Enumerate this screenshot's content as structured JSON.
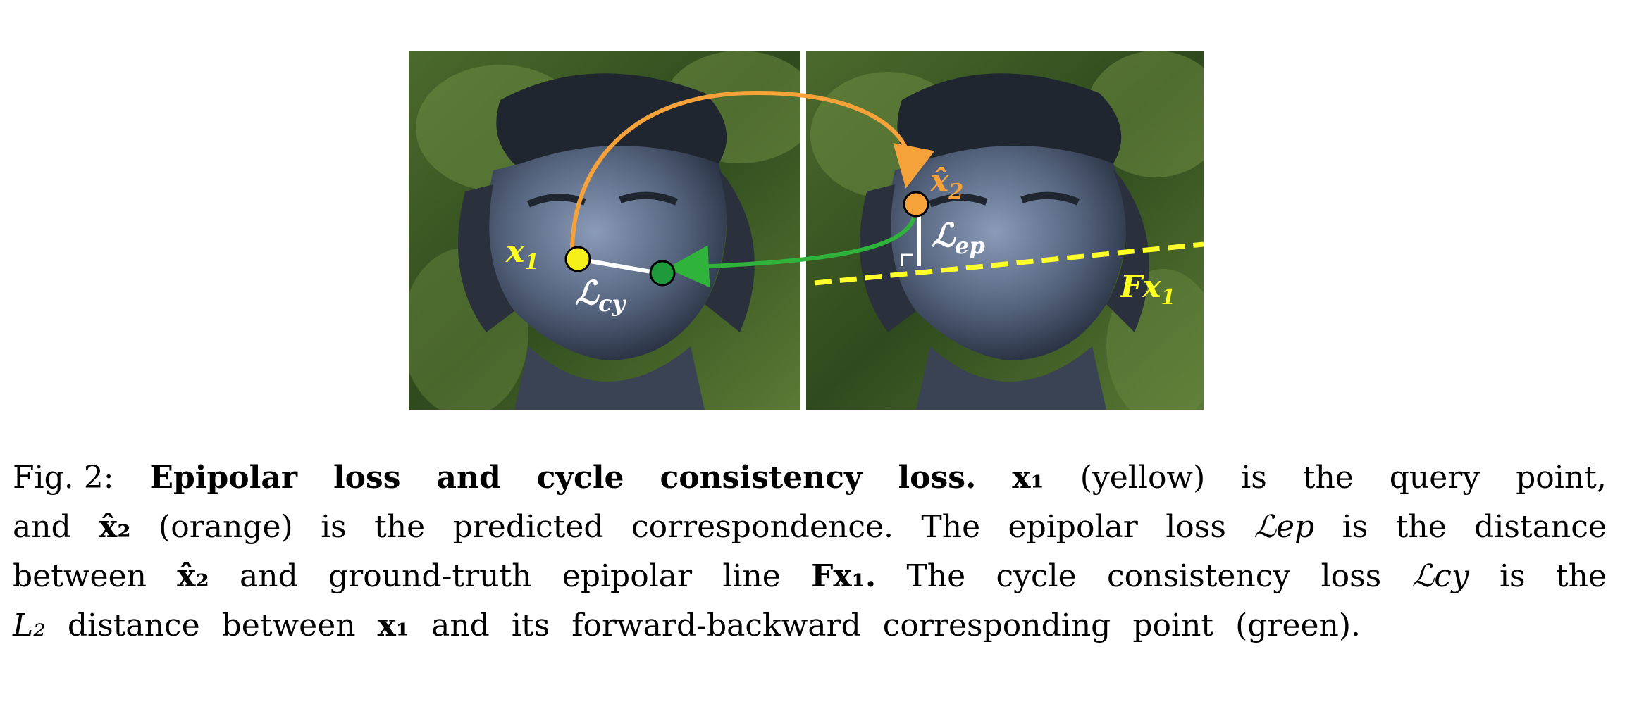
{
  "figure": {
    "labels": {
      "x1": "x",
      "x1_sub": "1",
      "x2hat": "x̂",
      "x2hat_sub": "2",
      "l_ep": "ℒ",
      "l_ep_sub": "ep",
      "l_cy": "ℒ",
      "l_cy_sub": "cy",
      "fx1": "Fx",
      "fx1_sub": "1"
    },
    "colors": {
      "query_point": "#f6f01a",
      "predicted_point": "#f5a23a",
      "cycle_point": "#1f9a3a",
      "forward_arrow": "#f5a23a",
      "backward_arrow": "#2fb33a",
      "epipolar_line": "#ffff2a",
      "loss_segments": "#ffffff"
    }
  },
  "caption": {
    "lines": [
      [
        "Fig. 2:",
        "Epipolar",
        "loss",
        "and",
        "cycle",
        "consistency",
        "loss.",
        "x₁",
        "(yellow)",
        "is",
        "the",
        "query",
        "point,"
      ],
      [
        "and",
        "x̂₂",
        "(orange)",
        "is",
        "the",
        "predicted",
        "correspondence.",
        "The",
        "epipolar",
        "loss",
        "ℒep",
        "is",
        "the",
        "distance"
      ],
      [
        "between",
        "x̂₂",
        "and",
        "ground-truth",
        "epipolar",
        "line",
        "Fx₁.",
        "The",
        "cycle",
        "consistency",
        "loss",
        "ℒcy",
        "is",
        "the"
      ],
      [
        "L₂",
        "distance",
        "between",
        "x₁",
        "and",
        "its",
        "forward-backward",
        "corresponding",
        "point",
        "(green)."
      ]
    ]
  }
}
